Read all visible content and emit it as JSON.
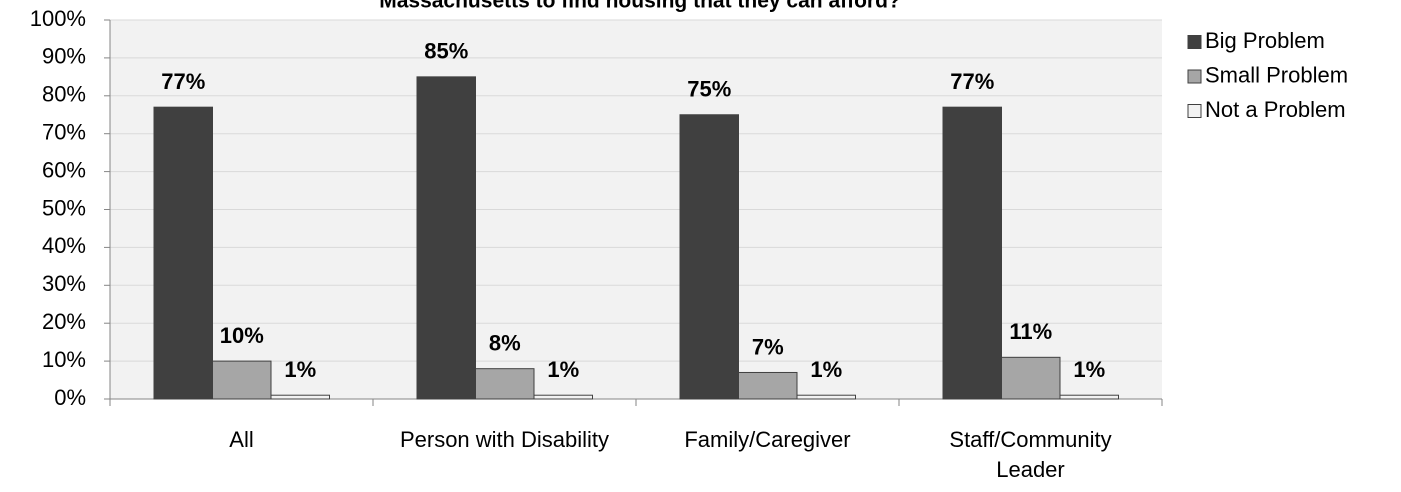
{
  "chart_data": {
    "type": "bar",
    "title": "Massachusetts to find housing that they can afford?",
    "categories": [
      "All",
      "Person with Disability",
      "Family/Caregiver",
      "Staff/Community Leader"
    ],
    "series": [
      {
        "name": "Big Problem",
        "color": "#404040",
        "values": [
          77,
          85,
          75,
          77
        ],
        "value_labels": [
          "77%",
          "85%",
          "75%",
          "77%"
        ]
      },
      {
        "name": "Small Problem",
        "color": "#a6a6a6",
        "values": [
          10,
          8,
          7,
          11
        ],
        "value_labels": [
          "10%",
          "8%",
          "7%",
          "11%"
        ]
      },
      {
        "name": "Not a Problem",
        "color": "#f2f2f2",
        "values": [
          1,
          1,
          1,
          1
        ],
        "value_labels": [
          "1%",
          "1%",
          "1%",
          "1%"
        ]
      }
    ],
    "ylim": [
      0,
      100
    ],
    "yticks": [
      {
        "value": 0,
        "label": "0%"
      },
      {
        "value": 10,
        "label": "10%"
      },
      {
        "value": 20,
        "label": "20%"
      },
      {
        "value": 30,
        "label": "30%"
      },
      {
        "value": 40,
        "label": "40%"
      },
      {
        "value": 50,
        "label": "50%"
      },
      {
        "value": 60,
        "label": "60%"
      },
      {
        "value": 70,
        "label": "70%"
      },
      {
        "value": 80,
        "label": "80%"
      },
      {
        "value": 90,
        "label": "90%"
      },
      {
        "value": 100,
        "label": "100%"
      }
    ],
    "grid": true,
    "legend": "right"
  }
}
